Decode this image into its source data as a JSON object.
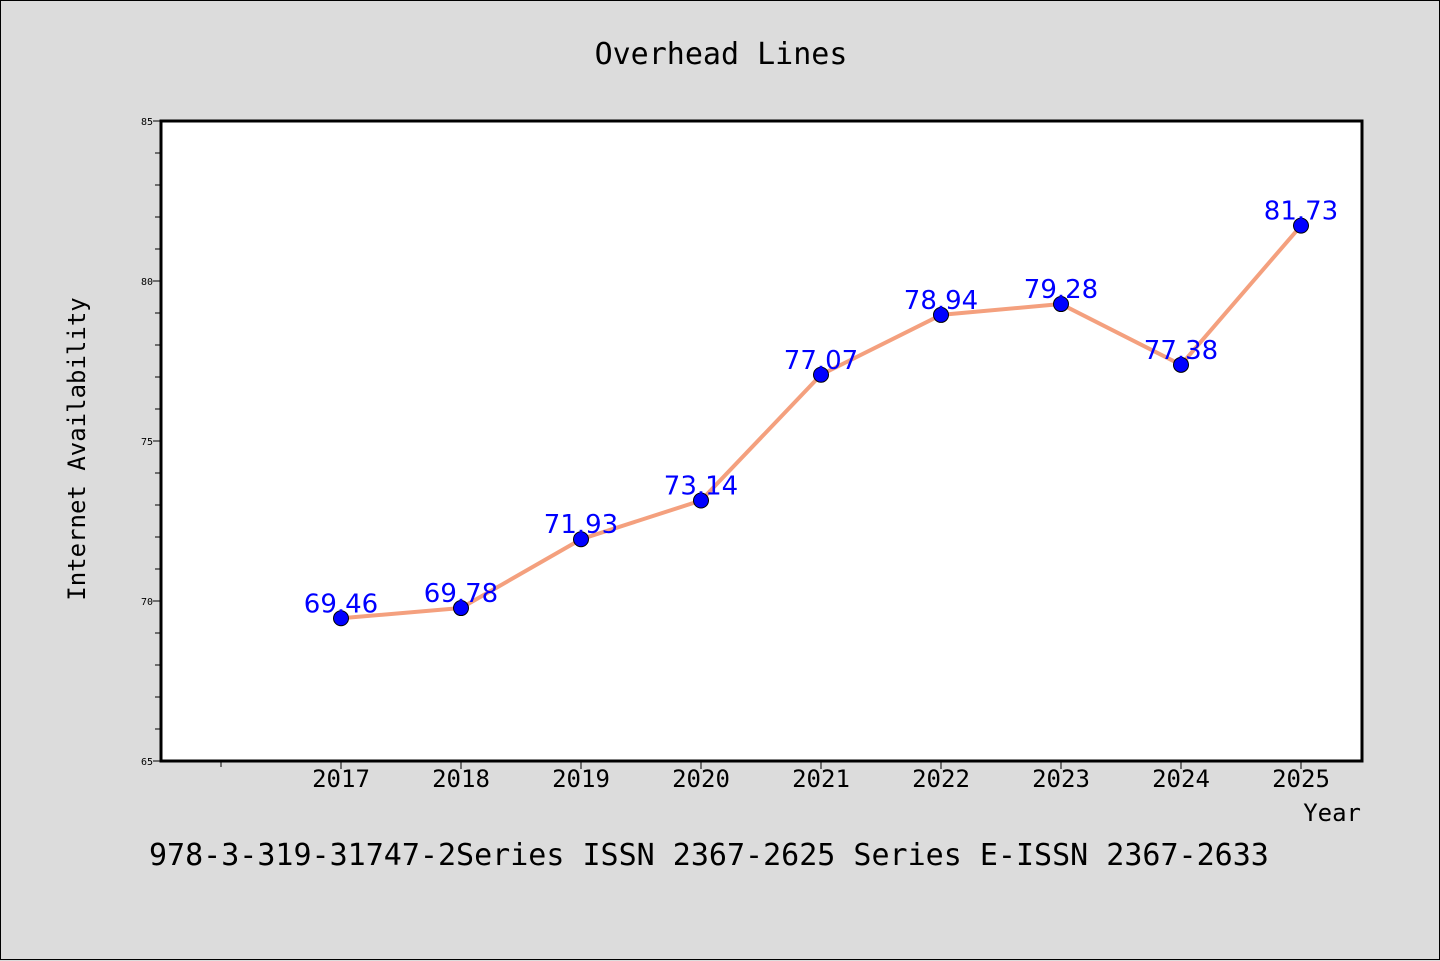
{
  "chart_data": {
    "type": "line",
    "title": "Overhead Lines",
    "xlabel": "Year",
    "ylabel": "Internet Availability",
    "categories": [
      "2017",
      "2018",
      "2019",
      "2020",
      "2021",
      "2022",
      "2023",
      "2024",
      "2025"
    ],
    "series": [
      {
        "values": [
          69.46,
          69.78,
          71.93,
          73.14,
          77.07,
          78.94,
          79.28,
          77.38,
          81.73
        ],
        "labels": [
          "69.46",
          "69.78",
          "71.93",
          "73.14",
          "77.07",
          "78.94",
          "79.28",
          "77.38",
          "81.73"
        ],
        "line_color": "#f4a07e",
        "marker_color": "#0000ff"
      }
    ],
    "ylim": [
      65,
      85
    ],
    "yticks": [
      "65",
      "70",
      "75",
      "80",
      "85"
    ],
    "grid": false,
    "background_color": "#dcdcdc",
    "plot_background_color": "#ffffff"
  },
  "footer": "978-3-319-31747-2Series ISSN 2367-2625 Series E-ISSN 2367-2633"
}
